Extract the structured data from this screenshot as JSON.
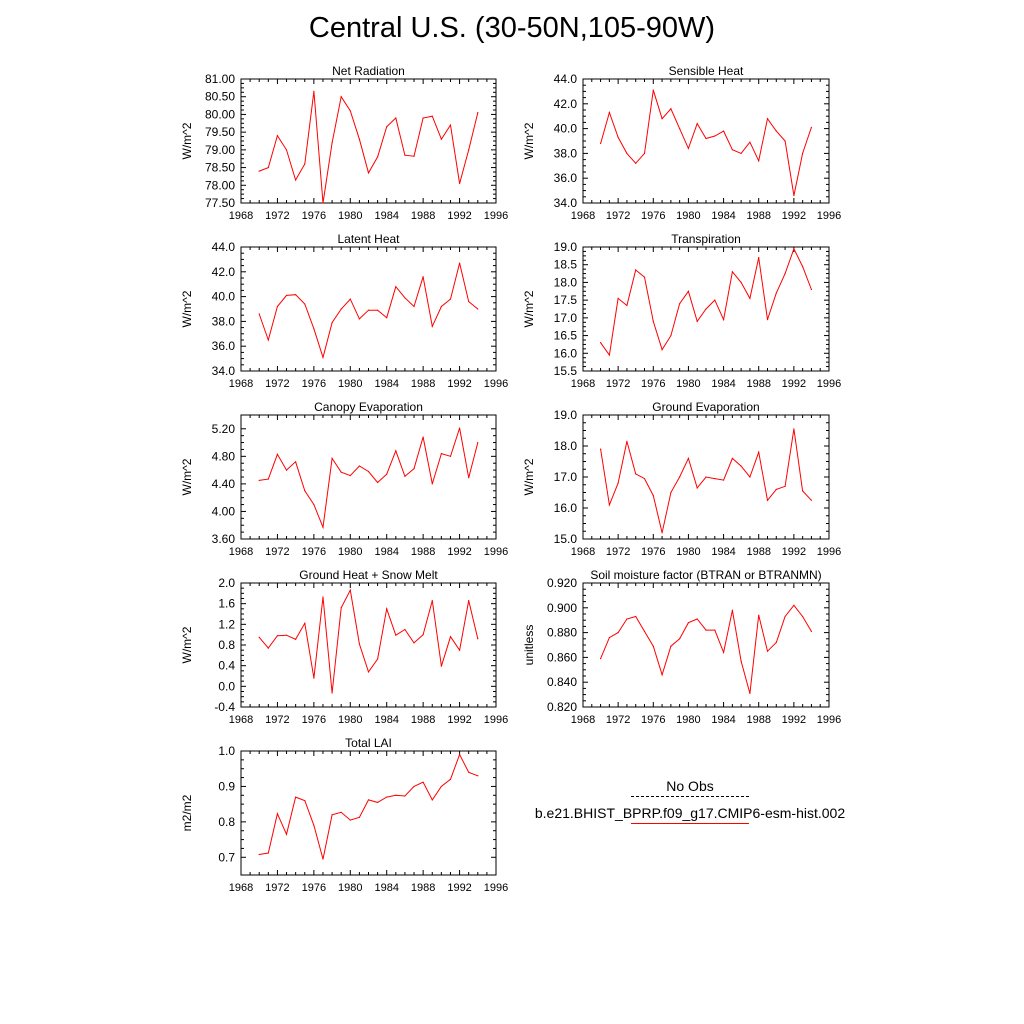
{
  "title": "Central U.S. (30-50N,105-90W)",
  "line_color": "#ff0000",
  "legend": {
    "obs_label": "No Obs",
    "model_label": "b.e21.BHIST_BPRP.f09_g17.CMIP6-esm-hist.002"
  },
  "chart_data": [
    {
      "type": "line",
      "title": "Net Radiation",
      "ylabel": "W/m^2",
      "xlim": [
        1968,
        1996
      ],
      "ylim": [
        77.5,
        81.0
      ],
      "xticks": [
        "1968",
        "1972",
        "1976",
        "1980",
        "1984",
        "1988",
        "1992",
        "1996"
      ],
      "yticks": [
        "77.50",
        "78.00",
        "78.50",
        "79.00",
        "79.50",
        "80.00",
        "80.50",
        "81.00"
      ],
      "x": [
        1970,
        1971,
        1972,
        1973,
        1974,
        1975,
        1976,
        1977,
        1978,
        1979,
        1980,
        1981,
        1982,
        1983,
        1984,
        1985,
        1986,
        1987,
        1988,
        1989,
        1990,
        1991,
        1992,
        1993,
        1994
      ],
      "values": [
        78.4,
        78.5,
        79.4,
        79.0,
        78.15,
        78.6,
        80.65,
        77.5,
        79.2,
        80.5,
        80.1,
        79.3,
        78.35,
        78.8,
        79.65,
        79.9,
        78.85,
        78.82,
        79.9,
        79.95,
        79.3,
        79.7,
        78.05,
        79.0,
        80.05
      ]
    },
    {
      "type": "line",
      "title": "Sensible Heat",
      "ylabel": "W/m^2",
      "xlim": [
        1968,
        1996
      ],
      "ylim": [
        34.0,
        44.0
      ],
      "xticks": [
        "1968",
        "1972",
        "1976",
        "1980",
        "1984",
        "1988",
        "1992",
        "1996"
      ],
      "yticks": [
        "34.0",
        "36.0",
        "38.0",
        "40.0",
        "42.0",
        "44.0"
      ],
      "x": [
        1970,
        1971,
        1972,
        1973,
        1974,
        1975,
        1976,
        1977,
        1978,
        1979,
        1980,
        1981,
        1982,
        1983,
        1984,
        1985,
        1986,
        1987,
        1988,
        1989,
        1990,
        1991,
        1992,
        1993,
        1994
      ],
      "values": [
        38.8,
        41.3,
        39.3,
        38.0,
        37.2,
        38.0,
        43.1,
        40.8,
        41.6,
        40.0,
        38.4,
        40.4,
        39.2,
        39.4,
        39.8,
        38.3,
        38.0,
        38.9,
        37.4,
        40.8,
        39.8,
        39.0,
        34.6,
        38.0,
        40.1
      ]
    },
    {
      "type": "line",
      "title": "Latent Heat",
      "ylabel": "W/m^2",
      "xlim": [
        1968,
        1996
      ],
      "ylim": [
        34.0,
        44.0
      ],
      "xticks": [
        "1968",
        "1972",
        "1976",
        "1980",
        "1984",
        "1988",
        "1992",
        "1996"
      ],
      "yticks": [
        "34.0",
        "36.0",
        "38.0",
        "40.0",
        "42.0",
        "44.0"
      ],
      "x": [
        1970,
        1971,
        1972,
        1973,
        1974,
        1975,
        1976,
        1977,
        1978,
        1979,
        1980,
        1981,
        1982,
        1983,
        1984,
        1985,
        1986,
        1987,
        1988,
        1989,
        1990,
        1991,
        1992,
        1993,
        1994
      ],
      "values": [
        38.6,
        36.5,
        39.2,
        40.1,
        40.15,
        39.4,
        37.4,
        35.1,
        37.9,
        39.0,
        39.8,
        38.2,
        38.9,
        38.9,
        38.3,
        40.8,
        39.9,
        39.2,
        41.6,
        37.6,
        39.2,
        39.8,
        42.7,
        39.6,
        39.0
      ]
    },
    {
      "type": "line",
      "title": "Transpiration",
      "ylabel": "W/m^2",
      "xlim": [
        1968,
        1996
      ],
      "ylim": [
        15.5,
        19.0
      ],
      "xticks": [
        "1968",
        "1972",
        "1976",
        "1980",
        "1984",
        "1988",
        "1992",
        "1996"
      ],
      "yticks": [
        "15.5",
        "16.0",
        "16.5",
        "17.0",
        "17.5",
        "18.0",
        "18.5",
        "19.0"
      ],
      "x": [
        1970,
        1971,
        1972,
        1973,
        1974,
        1975,
        1976,
        1977,
        1978,
        1979,
        1980,
        1981,
        1982,
        1983,
        1984,
        1985,
        1986,
        1987,
        1988,
        1989,
        1990,
        1991,
        1992,
        1993,
        1994
      ],
      "values": [
        16.3,
        15.95,
        17.55,
        17.35,
        18.35,
        18.15,
        16.9,
        16.1,
        16.5,
        17.4,
        17.75,
        16.9,
        17.25,
        17.5,
        16.95,
        18.3,
        18.0,
        17.55,
        18.7,
        16.95,
        17.7,
        18.25,
        18.95,
        18.45,
        17.8
      ]
    },
    {
      "type": "line",
      "title": "Canopy Evaporation",
      "ylabel": "W/m^2",
      "xlim": [
        1968,
        1996
      ],
      "ylim": [
        3.6,
        5.4
      ],
      "xticks": [
        "1968",
        "1972",
        "1976",
        "1980",
        "1984",
        "1988",
        "1992",
        "1996"
      ],
      "yticks": [
        "3.60",
        "4.00",
        "4.40",
        "4.80",
        "5.20"
      ],
      "x": [
        1970,
        1971,
        1972,
        1973,
        1974,
        1975,
        1976,
        1977,
        1978,
        1979,
        1980,
        1981,
        1982,
        1983,
        1984,
        1985,
        1986,
        1987,
        1988,
        1989,
        1990,
        1991,
        1992,
        1993,
        1994
      ],
      "values": [
        4.45,
        4.47,
        4.83,
        4.6,
        4.72,
        4.3,
        4.1,
        3.77,
        4.77,
        4.57,
        4.52,
        4.66,
        4.58,
        4.42,
        4.54,
        4.88,
        4.51,
        4.62,
        5.08,
        4.4,
        4.84,
        4.8,
        5.21,
        4.49,
        5.0
      ]
    },
    {
      "type": "line",
      "title": "Ground Evaporation",
      "ylabel": "W/m^2",
      "xlim": [
        1968,
        1996
      ],
      "ylim": [
        15.0,
        19.0
      ],
      "xticks": [
        "1968",
        "1972",
        "1976",
        "1980",
        "1984",
        "1988",
        "1992",
        "1996"
      ],
      "yticks": [
        "15.0",
        "16.0",
        "17.0",
        "18.0",
        "19.0"
      ],
      "x": [
        1970,
        1971,
        1972,
        1973,
        1974,
        1975,
        1976,
        1977,
        1978,
        1979,
        1980,
        1981,
        1982,
        1983,
        1984,
        1985,
        1986,
        1987,
        1988,
        1989,
        1990,
        1991,
        1992,
        1993,
        1994
      ],
      "values": [
        17.9,
        16.1,
        16.8,
        18.15,
        17.1,
        16.95,
        16.4,
        15.2,
        16.5,
        17.0,
        17.6,
        16.65,
        17.0,
        16.95,
        16.9,
        17.6,
        17.35,
        17.0,
        17.8,
        16.25,
        16.6,
        16.7,
        18.55,
        16.55,
        16.25
      ]
    },
    {
      "type": "line",
      "title": "Ground Heat + Snow Melt",
      "ylabel": "W/m^2",
      "xlim": [
        1968,
        1996
      ],
      "ylim": [
        -0.4,
        2.0
      ],
      "xticks": [
        "1968",
        "1972",
        "1976",
        "1980",
        "1984",
        "1988",
        "1992",
        "1996"
      ],
      "yticks": [
        "-0.4",
        "0.0",
        "0.4",
        "0.8",
        "1.2",
        "1.6",
        "2.0"
      ],
      "x": [
        1970,
        1971,
        1972,
        1973,
        1974,
        1975,
        1976,
        1977,
        1978,
        1979,
        1980,
        1981,
        1982,
        1983,
        1984,
        1985,
        1986,
        1987,
        1988,
        1989,
        1990,
        1991,
        1992,
        1993,
        1994
      ],
      "values": [
        0.95,
        0.74,
        0.98,
        0.99,
        0.91,
        1.22,
        0.16,
        1.73,
        -0.13,
        1.52,
        1.86,
        0.82,
        0.28,
        0.53,
        1.5,
        0.99,
        1.1,
        0.84,
        1.0,
        1.66,
        0.39,
        0.96,
        0.7,
        1.66,
        0.92
      ]
    },
    {
      "type": "line",
      "title": "Soil moisture factor (BTRAN or BTRANMN)",
      "ylabel": "unitless",
      "xlim": [
        1968,
        1996
      ],
      "ylim": [
        0.82,
        0.92
      ],
      "xticks": [
        "1968",
        "1972",
        "1976",
        "1980",
        "1984",
        "1988",
        "1992",
        "1996"
      ],
      "yticks": [
        "0.820",
        "0.840",
        "0.860",
        "0.880",
        "0.900",
        "0.920"
      ],
      "x": [
        1970,
        1971,
        1972,
        1973,
        1974,
        1975,
        1976,
        1977,
        1978,
        1979,
        1980,
        1981,
        1982,
        1983,
        1984,
        1985,
        1986,
        1987,
        1988,
        1989,
        1990,
        1991,
        1992,
        1993,
        1994
      ],
      "values": [
        0.859,
        0.876,
        0.88,
        0.891,
        0.893,
        0.881,
        0.869,
        0.846,
        0.869,
        0.875,
        0.888,
        0.891,
        0.882,
        0.882,
        0.864,
        0.898,
        0.857,
        0.831,
        0.894,
        0.865,
        0.872,
        0.893,
        0.902,
        0.893,
        0.881
      ]
    },
    {
      "type": "line",
      "title": "Total LAI",
      "ylabel": "m2/m2",
      "xlim": [
        1968,
        1996
      ],
      "ylim": [
        0.65,
        1.0
      ],
      "xticks": [
        "1968",
        "1972",
        "1976",
        "1980",
        "1984",
        "1988",
        "1992",
        "1996"
      ],
      "yticks": [
        "0.7",
        "0.8",
        "0.9",
        "1.0"
      ],
      "x": [
        1970,
        1971,
        1972,
        1973,
        1974,
        1975,
        1976,
        1977,
        1978,
        1979,
        1980,
        1981,
        1982,
        1983,
        1984,
        1985,
        1986,
        1987,
        1988,
        1989,
        1990,
        1991,
        1992,
        1993,
        1994
      ],
      "values": [
        0.708,
        0.712,
        0.823,
        0.765,
        0.87,
        0.86,
        0.79,
        0.695,
        0.82,
        0.827,
        0.805,
        0.813,
        0.862,
        0.855,
        0.87,
        0.875,
        0.873,
        0.9,
        0.912,
        0.862,
        0.9,
        0.92,
        0.99,
        0.94,
        0.93
      ]
    }
  ]
}
